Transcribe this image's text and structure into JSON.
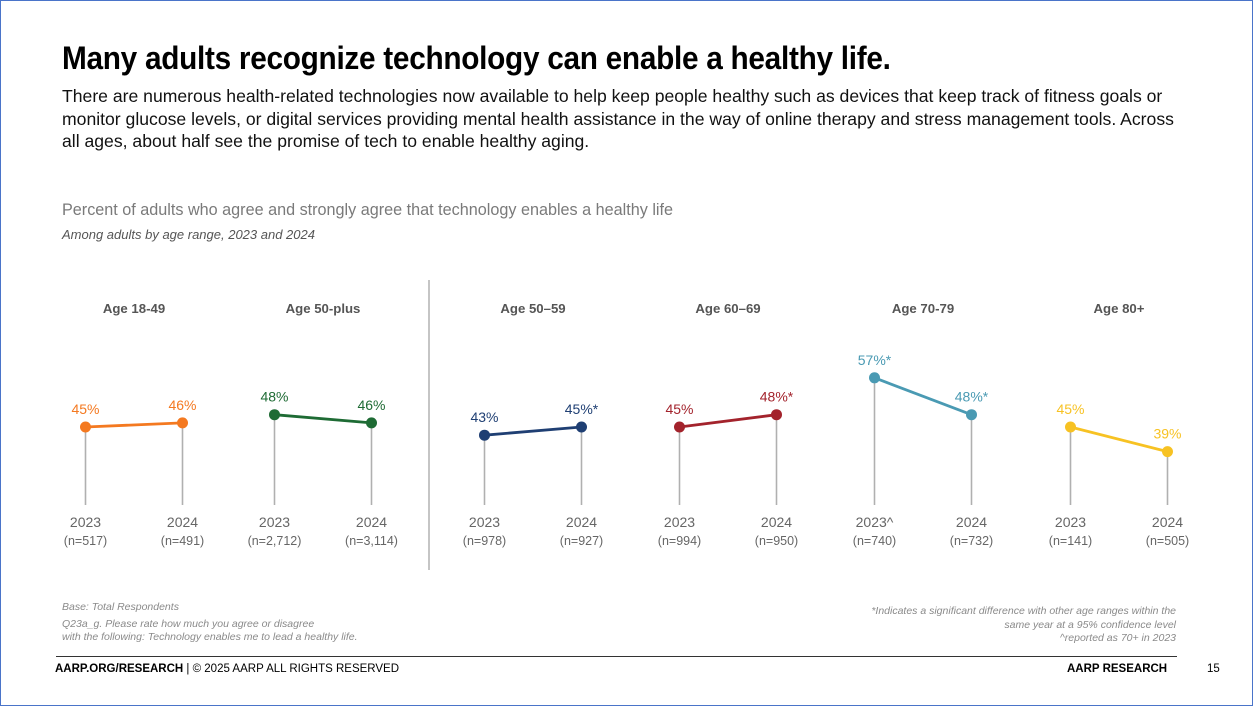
{
  "title": "Many adults recognize technology can enable a healthy life.",
  "intro": "There are numerous health-related technologies now available to help keep people healthy such as devices that keep track of fitness goals or monitor glucose levels, or digital services providing mental health assistance in the way of online therapy and stress management tools. Across all ages, about half see the promise of tech to enable healthy aging.",
  "colors": {
    "frame": "#4a74c9",
    "divider": "#a6a6a6",
    "stem": "#b0b0b0",
    "axis_text": "#666666"
  },
  "chart_data": {
    "type": "line",
    "title": "Percent of adults who agree and strongly agree that technology enables a healthy life",
    "subtitle": "Among adults by age range, 2023 and 2024",
    "unit": "%",
    "panels": [
      {
        "label": "Age 18-49",
        "color": "#f47920",
        "points": [
          {
            "year": "2023",
            "n": "(n=517)",
            "value": 45,
            "label": "45%"
          },
          {
            "year": "2024",
            "n": "(n=491)",
            "value": 46,
            "label": "46%"
          }
        ]
      },
      {
        "label": "Age 50-plus",
        "color": "#1e6b34",
        "points": [
          {
            "year": "2023",
            "n": "(n=2,712)",
            "value": 48,
            "label": "48%"
          },
          {
            "year": "2024",
            "n": "(n=3,114)",
            "value": 46,
            "label": "46%"
          }
        ]
      },
      {
        "label": "Age 50–59",
        "color": "#1f3f73",
        "points": [
          {
            "year": "2023",
            "n": "(n=978)",
            "value": 43,
            "label": "43%"
          },
          {
            "year": "2024",
            "n": "(n=927)",
            "value": 45,
            "label": "45%*"
          }
        ]
      },
      {
        "label": "Age 60–69",
        "color": "#a3232c",
        "points": [
          {
            "year": "2023",
            "n": "(n=994)",
            "value": 45,
            "label": "45%"
          },
          {
            "year": "2024",
            "n": "(n=950)",
            "value": 48,
            "label": "48%*"
          }
        ]
      },
      {
        "label": "Age 70-79",
        "color": "#4a9ab3",
        "points": [
          {
            "year": "2023^",
            "n": "(n=740)",
            "value": 57,
            "label": "57%*"
          },
          {
            "year": "2024",
            "n": "(n=732)",
            "value": 48,
            "label": "48%*"
          }
        ]
      },
      {
        "label": "Age 80+",
        "color": "#f7c223",
        "points": [
          {
            "year": "2023",
            "n": "(n=141)",
            "value": 45,
            "label": "45%"
          },
          {
            "year": "2024",
            "n": "(n=505)",
            "value": 39,
            "label": "39%"
          }
        ]
      }
    ]
  },
  "footnotes": {
    "base": "Base: Total Respondents",
    "question_line1": "Q23a_g. Please rate how much you agree or disagree",
    "question_line2": "with the following: Technology enables me to lead a healthy life.",
    "significance_line1": "*Indicates a significant difference with other age ranges within the",
    "significance_line2": "same year at a 95% confidence level",
    "caret_note": "^reported as 70+ in 2023"
  },
  "footer": {
    "site": "AARP.ORG/RESEARCH",
    "rights": " | © 2025 AARP ALL RIGHTS RESERVED",
    "brand": "AARP RESEARCH",
    "page": "15"
  }
}
